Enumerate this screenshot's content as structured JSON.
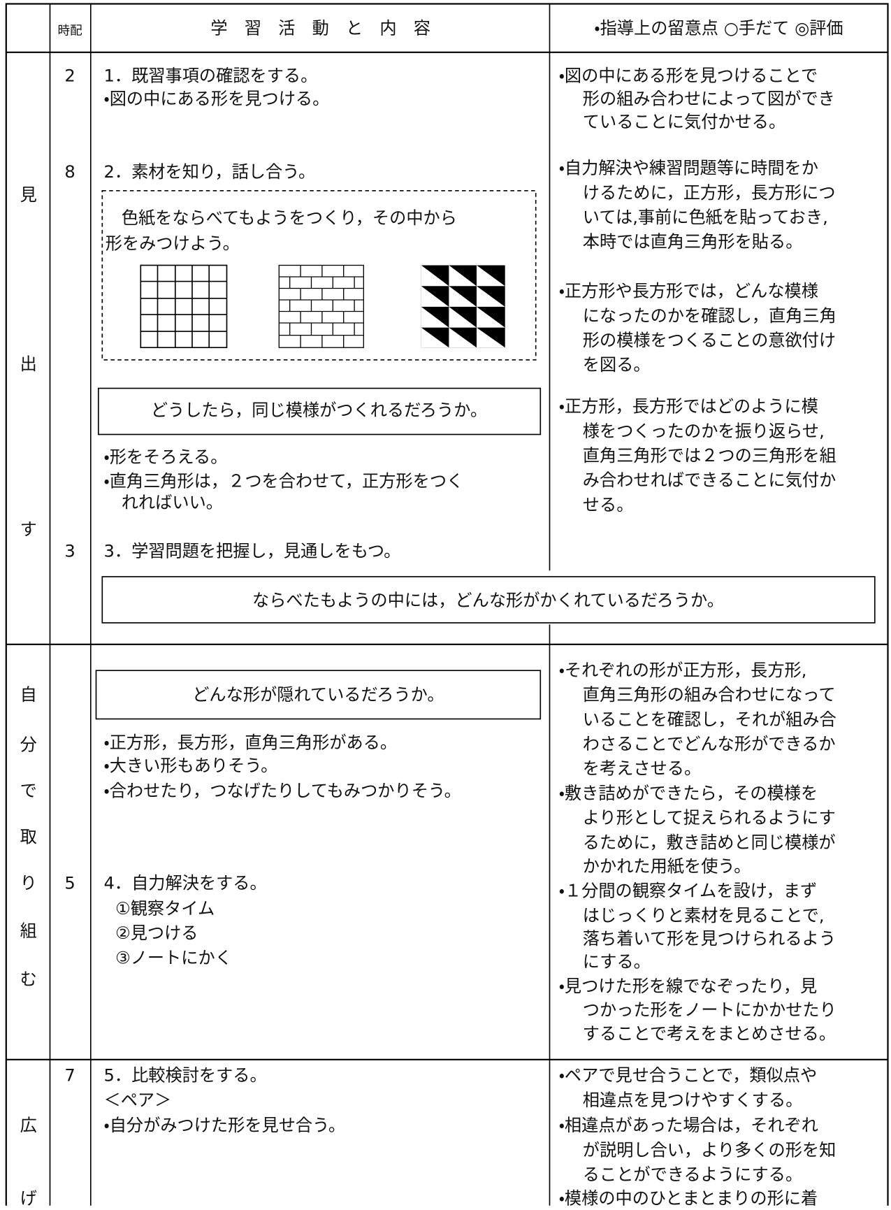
{
  "header": {
    "time": "時配",
    "activity": "学　習　活　動　と　内　容",
    "notes": "・指導上の留意点 ○手だて ◎評価"
  },
  "sections": [
    {
      "stage": [
        "見",
        "出",
        "す"
      ],
      "times": [
        2,
        8,
        3
      ],
      "activities": [
        "1．既習事項の確認をする。",
        "・図の中にある形を見つける。",
        "2．素材を知り，話し合う。"
      ],
      "task_box": [
        "色紙をならべてもようをつくり，その中から",
        "形をみつけよう。"
      ],
      "question": "どうしたら，同じ模様がつくれるだろうか。",
      "ideas": [
        "・形をそろえる。",
        "・直角三角形は，２つを合わせて，正方形をつく",
        "れればいい。"
      ],
      "step": "3．学習問題を把握し，見通しをもつ。",
      "problem": "ならべたもようの中には，どんな形がかくれているだろうか。",
      "notes": [
        "・図の中にある形を見つけることで",
        "形の組み合わせによって図ができ",
        "ていることに気付かせる。",
        "・自力解決や練習問題等に時間をか",
        "けるために，正方形，長方形につ",
        "いては,事前に色紙を貼っておき,",
        "本時では直角三角形を貼る。",
        "・正方形や長方形では，どんな模様",
        "になったのかを確認し，直角三角",
        "形の模様をつくることの意欲付け",
        "を図る。",
        "・正方形，長方形ではどのように模",
        "様をつくったのかを振り返らせ,",
        "直角三角形では２つの三角形を組",
        "み合わせればできることに気付か",
        "せる。"
      ]
    },
    {
      "stage": [
        "自",
        "分",
        "で",
        "取",
        "り",
        "組",
        "む"
      ],
      "times": [
        5
      ],
      "question": "どんな形が隠れているだろうか。",
      "ideas": [
        "・正方形，長方形，直角三角形がある。",
        "・大きい形もありそう。",
        "・合わせたり，つなげたりしてもみつかりそう。"
      ],
      "step": "4．自力解決をする。",
      "substeps": [
        "①観察タイム",
        "②見つける",
        "③ノートにかく"
      ],
      "notes": [
        "・それぞれの形が正方形，長方形,",
        "直角三角形の組み合わせになって",
        "いることを確認し，それが組み合",
        "わさることでどんな形ができるか",
        "を考えさせる。",
        "・敷き詰めができたら，その模様を",
        "より形として捉えられるようにす",
        "るために，敷き詰めと同じ模様が",
        "かかれた用紙を使う。",
        "・１分間の観察タイムを設け，まず",
        "はじっくりと素材を見ることで,",
        "落ち着いて形を見つけられるよう",
        "にする。",
        "・見つけた形を線でなぞったり，見",
        "つかった形をノートにかかせたり",
        "することで考えをまとめさせる。"
      ]
    },
    {
      "stage": [
        "広",
        "げ"
      ],
      "times": [
        7
      ],
      "activities": [
        "5．比較検討をする。",
        "＜ペア＞",
        "・自分がみつけた形を見せ合う。"
      ],
      "notes": [
        "・ペアで見せ合うことで，類似点や",
        "相違点を見つけやすくする。",
        "・相違点があった場合は，それぞれ",
        "が説明し合い，より多くの形を知",
        "ることができるようにする。",
        "・模様の中のひとまとまりの形に着"
      ]
    }
  ]
}
